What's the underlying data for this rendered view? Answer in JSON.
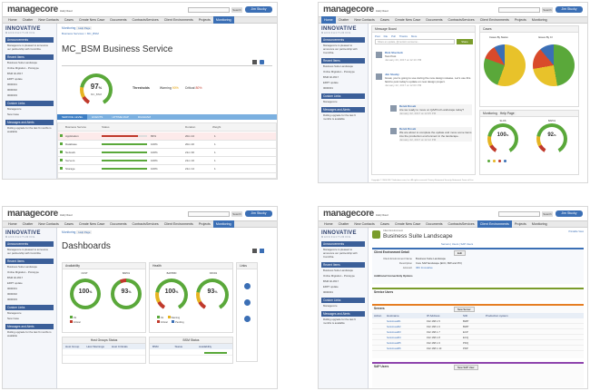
{
  "app": {
    "logo": "managecore",
    "logo_sub": "Hub | Cloud",
    "search_button": "Search",
    "user_button": "Jim Stucky",
    "brand": "INNOVATIVE",
    "brand_sub": "MANUFACTURING",
    "nav": [
      "Home",
      "Chatter",
      "New Contacts",
      "Cases",
      "Create New Case",
      "Documents",
      "ContractsServices",
      "Client Environments",
      "Projects",
      "Monitoring"
    ],
    "sidebar": {
      "announcements": "Announcements",
      "announcement_text": "Managecore is pleased to announce our partnership with Comtriba.",
      "recent_items": "Recent Items",
      "recent_list": [
        "Business Suite Landscape",
        "Online Migration - Prototype",
        "BSM 02-4517",
        "ERP7 update",
        "0000001",
        "0000002",
        "0000003",
        "0000004",
        "PD000000",
        "0000007"
      ],
      "custom_links": "Custom Links",
      "custom_list": [
        "Managecore",
        "New Case"
      ],
      "messages": "Messages and Alerts",
      "messages_text": "Rolling upgrade for the last 6 months is available"
    }
  },
  "panel1": {
    "breadcrumb_monitoring": "Monitoring",
    "breadcrumb_help": "Help Page",
    "breadcrumb_path": "Business Services  >  MC_BSM",
    "title": "MC_BSM Business Service",
    "gauge_value": "97",
    "gauge_unit": "%",
    "gauge_label": "MC_BSM",
    "thresholds_label": "Thresholds",
    "warning_label": "Warning",
    "warning_value": "90%",
    "critical_label": "Critical",
    "critical_value": "80%",
    "tabs": [
      "SERVICE LEVEL",
      "EVENTS",
      "UPTIME MAP",
      "DIAGRAM"
    ],
    "table_headers": [
      "Business Service",
      "Status",
      "Duration",
      "Weight"
    ],
    "rows": [
      {
        "name": "Application",
        "pct": "83%",
        "dur": "20m 24",
        "w": "1"
      },
      {
        "name": "Database",
        "pct": "100%",
        "dur": "20m 20",
        "w": "1"
      },
      {
        "name": "Network",
        "pct": "100%",
        "dur": "21m 30",
        "w": "1"
      },
      {
        "name": "Servers",
        "pct": "100%",
        "dur": "21m 16",
        "w": "1"
      },
      {
        "name": "Storage",
        "pct": "100%",
        "dur": "21m 14",
        "w": "1"
      }
    ]
  },
  "panel2": {
    "message_board": "Message Board",
    "cases": "Cases",
    "post_actions": [
      "Post",
      "File",
      "Poll",
      "Thanks",
      "More"
    ],
    "share_placeholder": "Share an update, @mention someone...",
    "share_button": "Share",
    "pie1_label": "Cases By Status",
    "pie2_label": "Issues By CI",
    "posts": [
      {
        "author": "Rick Sherlock",
        "text": "Test Post",
        "time": "January 23, 2017 at 12:10 PM"
      },
      {
        "author": "Jim Stucky",
        "text": "Great, you're going to use during the new design release. Let's use this field to post today's update on new design project.",
        "time": "January 22, 2017 at 12:00 PM"
      },
      {
        "author": "Derek Rosek",
        "text": "Are we ready to move on QA/Prod Landscape today?",
        "time": "January 22, 2017 at 12:05 PM"
      },
      {
        "author": "Derek Rosek",
        "text": "We are about to complete the update and move some items into the production environment in the landscape.",
        "time": "January 22, 2017 at 12:12 PM"
      }
    ],
    "monitoring": "Monitoring",
    "monitoring_help": "Help Page",
    "g1_value": "100",
    "g1_unit": "%",
    "g1_label": "SLOS",
    "g2_value": "92",
    "g2_unit": "%",
    "g2_label": "BAP01",
    "footer": "Copyright © 2000-2017 Salesforce.com, Inc. All rights reserved.  Privacy Statement  Security Statement  Terms of Use"
  },
  "panel3": {
    "breadcrumb_monitoring": "Monitoring",
    "breadcrumb_help": "Help Page",
    "title": "Dashboards",
    "availability": "Availability",
    "health": "Health",
    "links": "Links",
    "g1": {
      "label": "CUST",
      "value": "100",
      "unit": "%"
    },
    "g2": {
      "label": "BAP01",
      "value": "93",
      "unit": "%"
    },
    "g3": {
      "label": "BAPPRD",
      "value": "100",
      "unit": "%"
    },
    "g4": {
      "label": "NXO01",
      "value": "93",
      "unit": "%"
    },
    "legend": [
      "Ok",
      "Warning",
      "Critical",
      "Pending"
    ],
    "host_groups_status": "Host Groups Status",
    "bsm_status": "BSM Status",
    "host_cols": [
      "Host Group",
      "Host Warnings",
      "Host Criticals"
    ],
    "bsm_cols": [
      "BSM",
      "Status",
      "Availability"
    ]
  },
  "panel4": {
    "client_env_label": "Client Environment",
    "title": "Business Suite Landscape",
    "printable": "Printable View",
    "crumbs": "Servers  |  Users  |  SAP Users",
    "client_env_detail": "Client Environment Detail",
    "edit": "Edit",
    "env_name_label": "Client Environment Name",
    "env_name": "Business Suite Landscape",
    "description_label": "Description",
    "description": "Core SAP landscape (ECC, BW and PO)",
    "account_label": "Account",
    "account": "IMC Innovative",
    "additional_title": "Additional Connectivity Options",
    "servers": "Servers",
    "server_cols": [
      "Action",
      "Hostname",
      "IP Address",
      "SID",
      "Production system"
    ],
    "server_rows": [
      {
        "host": "hostvisual01",
        "ip": "192.168.1.5",
        "sid": "BWP"
      },
      {
        "host": "hostvisual02",
        "ip": "192.168.1.6",
        "sid": "BWP"
      },
      {
        "host": "hostvisual03",
        "ip": "192.168.1.7",
        "sid": "ECP"
      },
      {
        "host": "hostvisual04",
        "ip": "192.168.1.8",
        "sid": "ECQ"
      },
      {
        "host": "hostvisual05",
        "ip": "192.168.1.9",
        "sid": "PDQ"
      },
      {
        "host": "hostvisual06",
        "ip": "192.168.1.10",
        "sid": "PDP"
      }
    ],
    "service_users": "Service Users",
    "sap_users": "SAP Users",
    "new_server": "New Server",
    "new_sap_user": "New SAP User"
  }
}
